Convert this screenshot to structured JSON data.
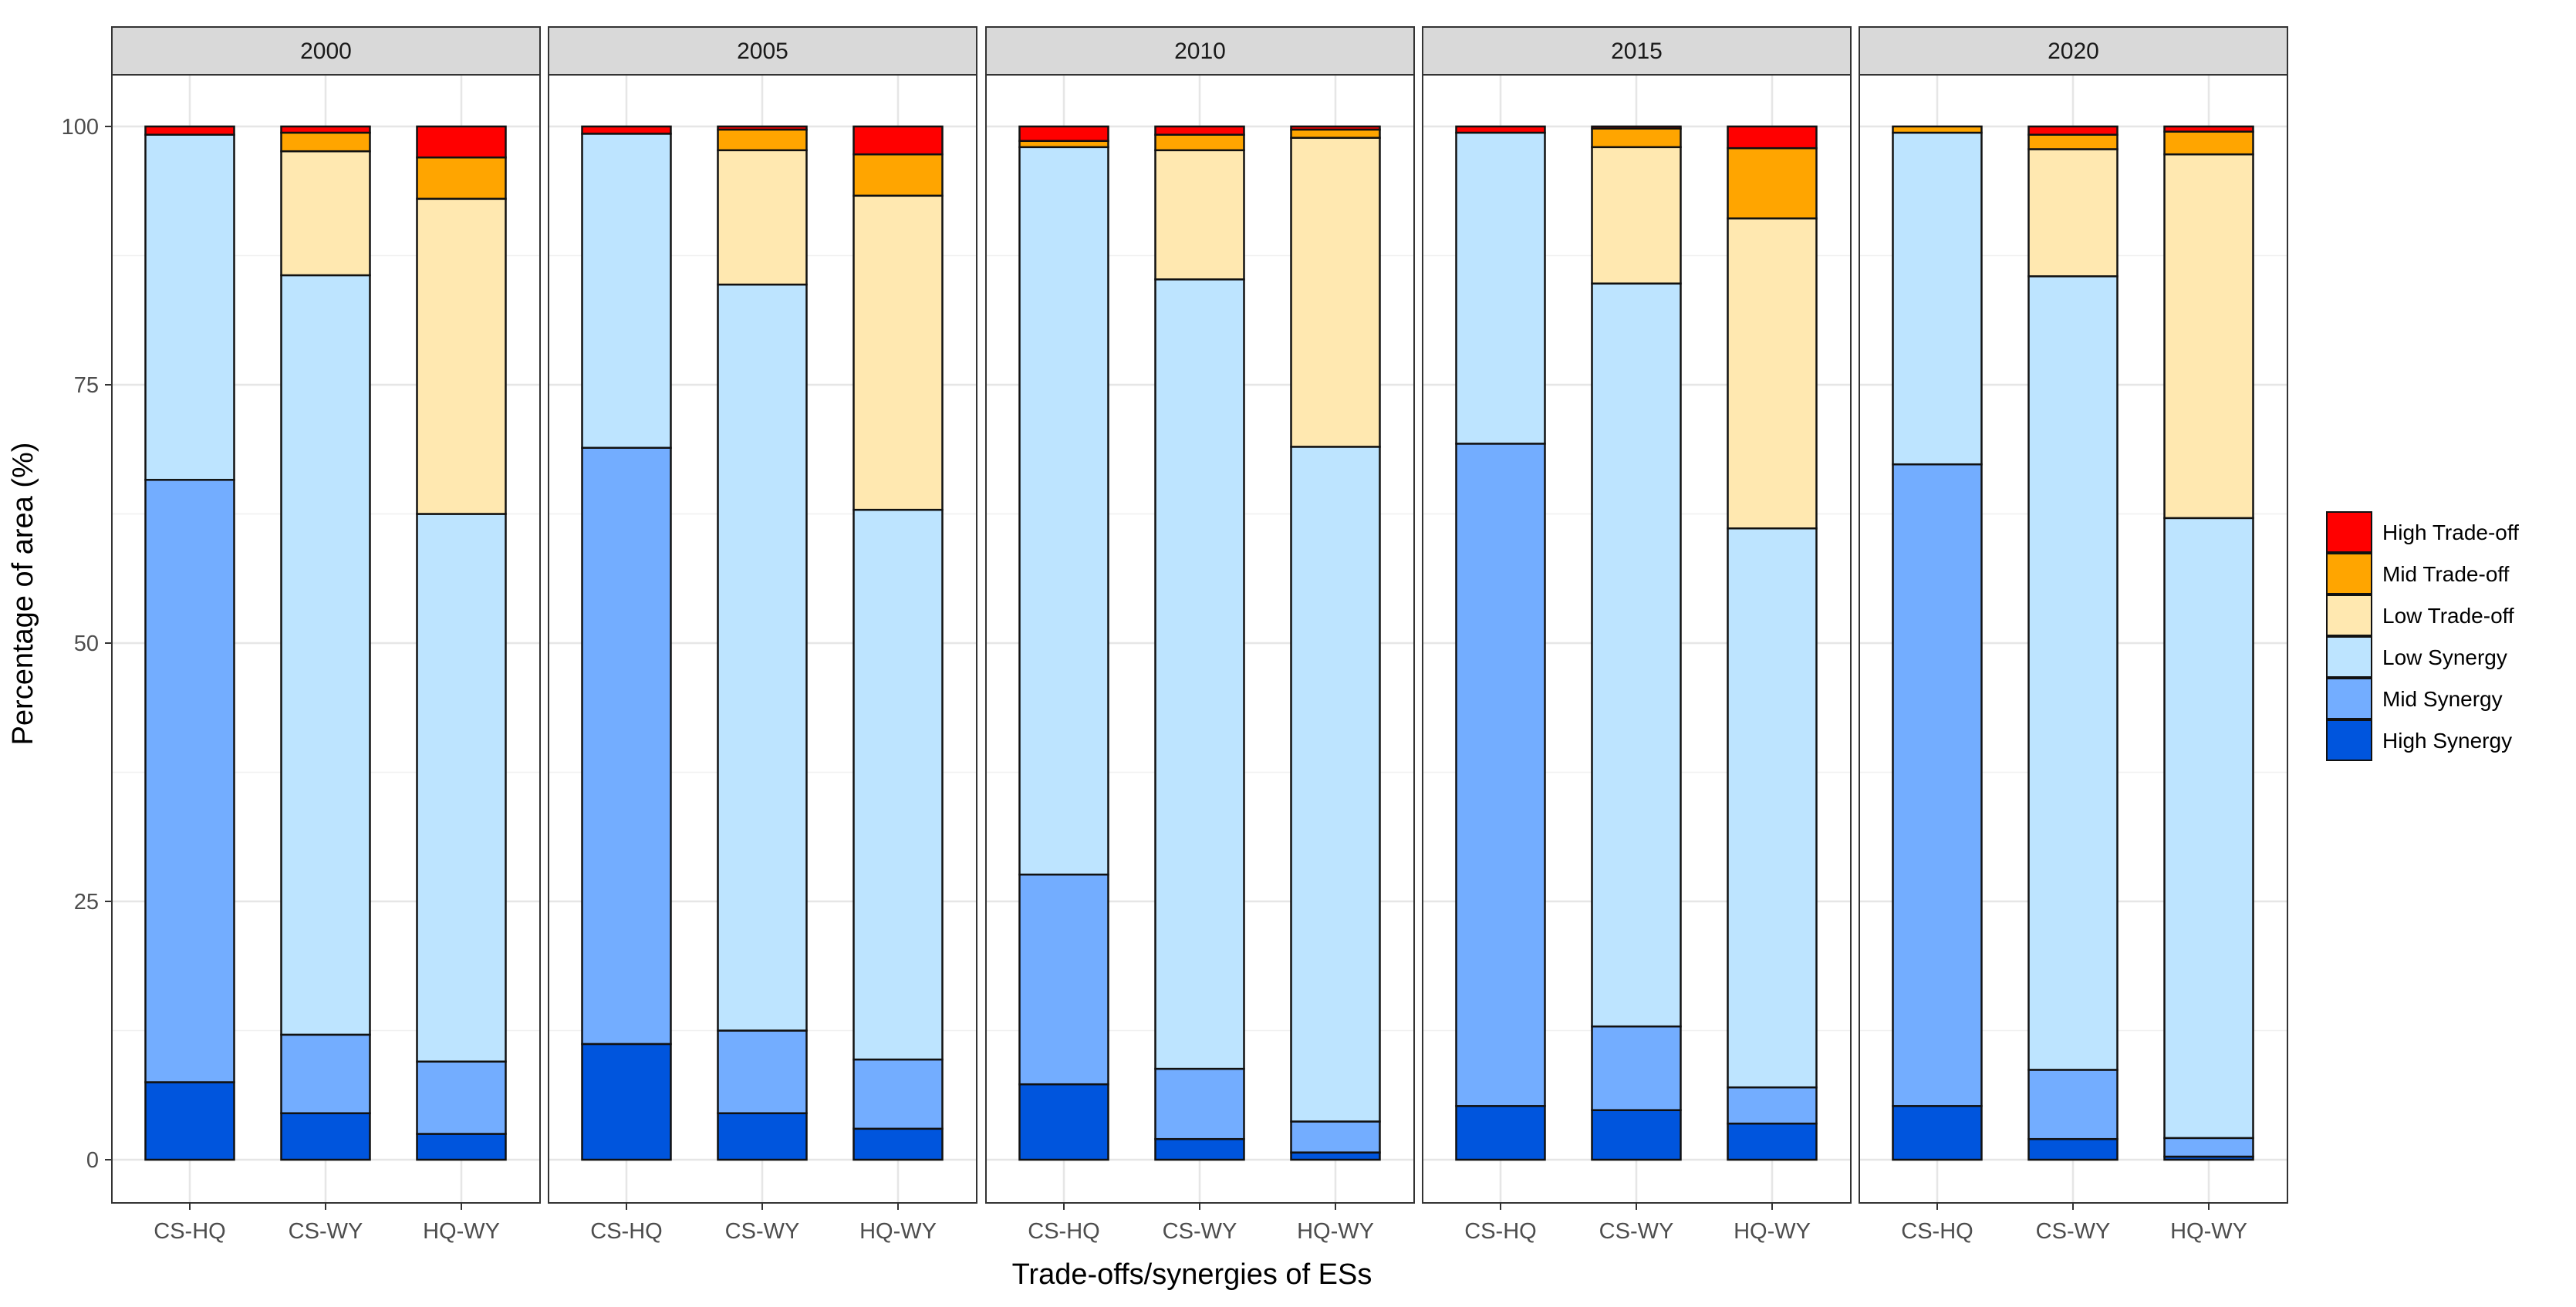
{
  "chart_data": {
    "type": "bar",
    "stacked": true,
    "xlabel": "Trade-offs/synergies of ESs",
    "ylabel": "Percentage of area (%)",
    "ylim": [
      0,
      100
    ],
    "yticks": [
      "0",
      "25",
      "50",
      "75",
      "100"
    ],
    "grid": true,
    "legend_position": "right",
    "categories": [
      "CS-HQ",
      "CS-WY",
      "HQ-WY"
    ],
    "series_names": [
      "High Synergy",
      "Mid Synergy",
      "Low Synergy",
      "Low Trade-off",
      "Mid Trade-off",
      "High Trade-off"
    ],
    "legend_order": [
      "High Trade-off",
      "Mid Trade-off",
      "Low Trade-off",
      "Low Synergy",
      "Mid Synergy",
      "High Synergy"
    ],
    "colors": {
      "High Synergy": "#0055dd",
      "Mid Synergy": "#73adff",
      "Low Synergy": "#bde4ff",
      "Low Trade-off": "#ffe8b0",
      "Mid Trade-off": "#ffa500",
      "High Trade-off": "#ff0000"
    },
    "panels": [
      {
        "label": "2000",
        "bars": [
          [
            7.5,
            58.3,
            33.4,
            0.0,
            0.0,
            0.8
          ],
          [
            4.5,
            7.6,
            73.5,
            12.0,
            1.8,
            0.6
          ],
          [
            2.5,
            7.0,
            53.0,
            30.5,
            4.0,
            3.0
          ]
        ]
      },
      {
        "label": "2005",
        "bars": [
          [
            11.2,
            57.7,
            30.4,
            0.0,
            0.0,
            0.7
          ],
          [
            4.5,
            8.0,
            72.2,
            13.0,
            2.0,
            0.3
          ],
          [
            3.0,
            6.7,
            53.2,
            30.4,
            4.0,
            2.7
          ]
        ]
      },
      {
        "label": "2010",
        "bars": [
          [
            7.3,
            20.3,
            70.4,
            0.0,
            0.6,
            1.4
          ],
          [
            2.0,
            6.8,
            76.4,
            12.5,
            1.5,
            0.8
          ],
          [
            0.7,
            3.0,
            65.3,
            29.9,
            0.8,
            0.3
          ]
        ]
      },
      {
        "label": "2015",
        "bars": [
          [
            5.2,
            64.1,
            30.1,
            0.0,
            0.0,
            0.6
          ],
          [
            4.8,
            8.1,
            71.9,
            13.2,
            1.8,
            0.2
          ],
          [
            3.5,
            3.5,
            54.1,
            30.0,
            6.8,
            2.1
          ]
        ]
      },
      {
        "label": "2020",
        "bars": [
          [
            5.2,
            62.1,
            32.1,
            0.0,
            0.6,
            0.0
          ],
          [
            2.0,
            6.7,
            76.8,
            12.3,
            1.4,
            0.8
          ],
          [
            0.3,
            1.8,
            60.0,
            35.2,
            2.2,
            0.5
          ]
        ]
      }
    ]
  }
}
